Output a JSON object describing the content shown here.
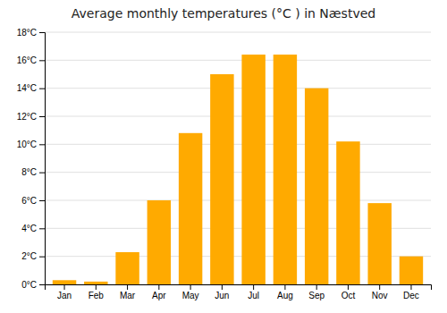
{
  "chart_data": {
    "type": "bar",
    "title": "Average monthly temperatures (°C ) in Næstved",
    "categories": [
      "Jan",
      "Feb",
      "Mar",
      "Apr",
      "May",
      "Jun",
      "Jul",
      "Aug",
      "Sep",
      "Oct",
      "Nov",
      "Dec"
    ],
    "values": [
      0.3,
      0.2,
      2.3,
      6.0,
      10.8,
      15.0,
      16.4,
      16.4,
      14.0,
      10.2,
      5.8,
      2.0
    ],
    "color": "#FFAA00",
    "ylim": [
      0,
      18
    ],
    "yticks": [
      {
        "value": 0,
        "label": "0°C"
      },
      {
        "value": 2,
        "label": "2°C"
      },
      {
        "value": 4,
        "label": "4°C"
      },
      {
        "value": 6,
        "label": "6°C"
      },
      {
        "value": 8,
        "label": "8°C"
      },
      {
        "value": 10,
        "label": "10°C"
      },
      {
        "value": 12,
        "label": "12°C"
      },
      {
        "value": 14,
        "label": "14°C"
      },
      {
        "value": 16,
        "label": "16°C"
      },
      {
        "value": 18,
        "label": "18°C"
      }
    ],
    "grid": true
  }
}
